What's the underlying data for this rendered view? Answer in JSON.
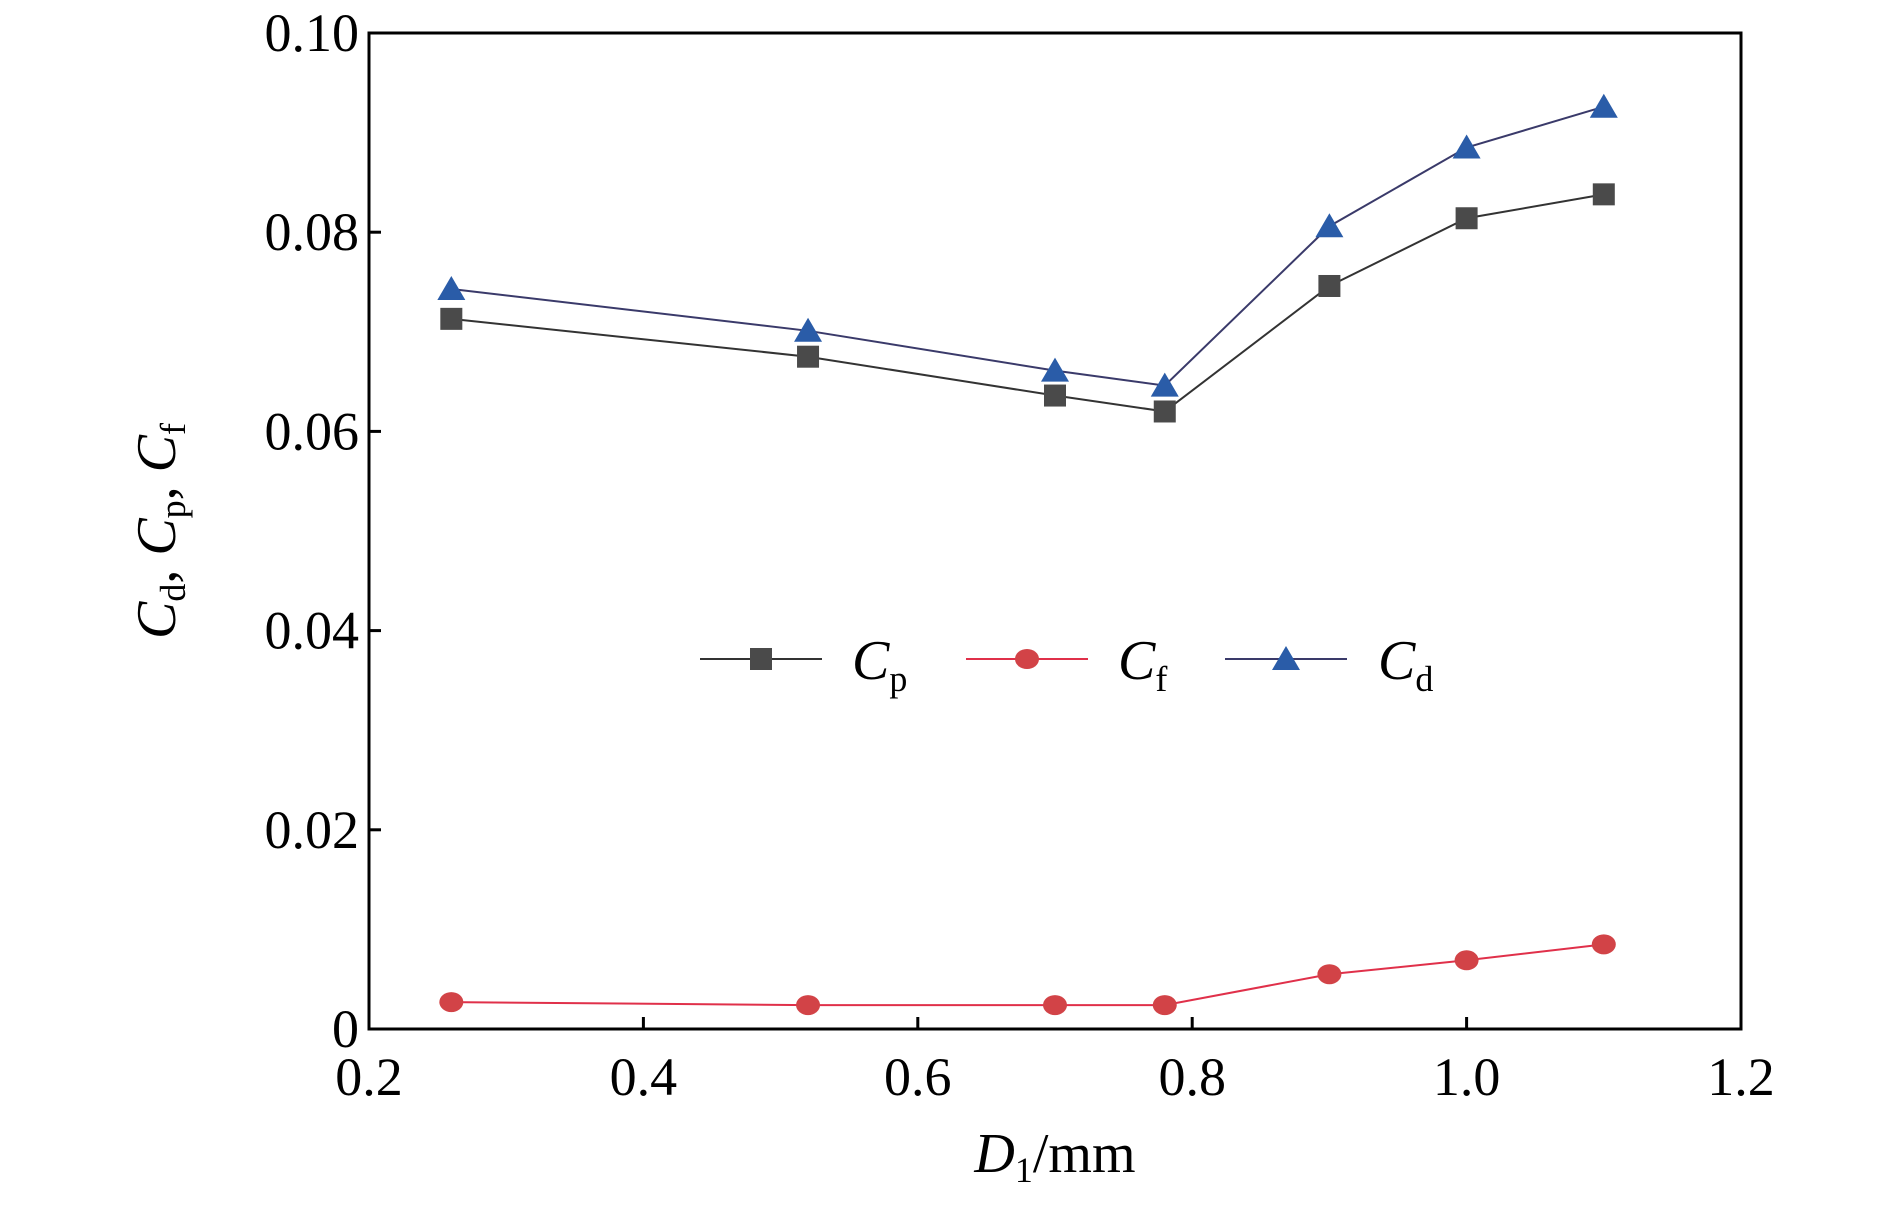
{
  "chart_data": {
    "type": "line",
    "xlim": [
      0.2,
      1.2
    ],
    "ylim": [
      0,
      0.1
    ],
    "x_ticks": [
      0.2,
      0.4,
      0.6,
      0.8,
      1.0,
      1.2
    ],
    "x_tick_labels": [
      "0.2",
      "0.4",
      "0.6",
      "0.8",
      "1.0",
      "1.2"
    ],
    "y_ticks": [
      0,
      0.02,
      0.04,
      0.06,
      0.08,
      0.1
    ],
    "y_tick_labels": [
      "0",
      "0.02",
      "0.04",
      "0.06",
      "0.08",
      "0.10"
    ],
    "xlabel": {
      "main": "D",
      "sub": "1",
      "rest": "/mm"
    },
    "ylabel": [
      {
        "main": "C",
        "sub": "d",
        "sep": ", "
      },
      {
        "main": "C",
        "sub": "p",
        "sep": ", "
      },
      {
        "main": "C",
        "sub": "f",
        "sep": ""
      }
    ],
    "grid": false,
    "legend_position": "center",
    "x": [
      0.26,
      0.52,
      0.7,
      0.78,
      0.9,
      1.0,
      1.1
    ],
    "series": [
      {
        "key": "cp",
        "label_main": "C",
        "label_sub": "p",
        "marker": "square",
        "line_color": "#333333",
        "marker_color": "#4a4a4a",
        "values": [
          0.0713,
          0.0675,
          0.0636,
          0.062,
          0.0746,
          0.0814,
          0.0838
        ]
      },
      {
        "key": "cf",
        "label_main": "C",
        "label_sub": "f",
        "marker": "circle",
        "line_color": "#e0304a",
        "marker_color": "#d24347",
        "values": [
          0.0027,
          0.0024,
          0.0024,
          0.0024,
          0.0055,
          0.0069,
          0.0085
        ]
      },
      {
        "key": "cd",
        "label_main": "C",
        "label_sub": "d",
        "marker": "triangle",
        "line_color": "#3a3a6a",
        "marker_color": "#2a5ca8",
        "values": [
          0.0743,
          0.0701,
          0.0661,
          0.0646,
          0.0806,
          0.0885,
          0.0926
        ]
      }
    ]
  }
}
